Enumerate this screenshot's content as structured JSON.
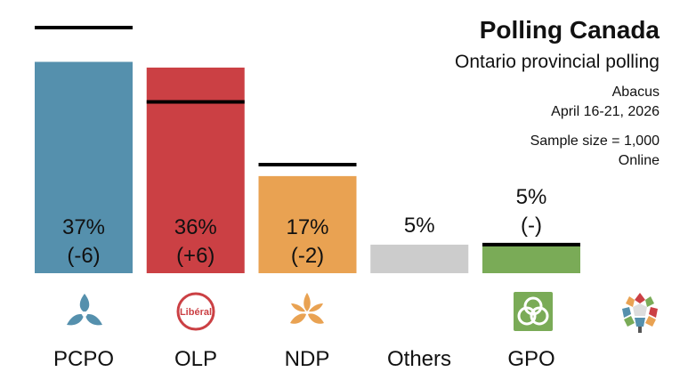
{
  "header": {
    "title": "Polling Canada",
    "subtitle": "Ontario provincial polling",
    "pollster": "Abacus",
    "dates": "April 16-21, 2026",
    "sample": "Sample size = 1,000",
    "method": "Online"
  },
  "chart_data": {
    "type": "bar",
    "categories": [
      "PCPO",
      "OLP",
      "NDP",
      "Others",
      "GPO"
    ],
    "series": [
      {
        "values": [
          37,
          36,
          17,
          5,
          5
        ]
      }
    ],
    "previous": [
      43,
      30,
      19,
      null,
      5
    ],
    "data_labels": [
      "37%",
      "36%",
      "17%",
      "5%",
      "5%"
    ],
    "change_labels": [
      "(-6)",
      "(+6)",
      "(-2)",
      "",
      "(-)"
    ],
    "colors": [
      "#5590ad",
      "#cb4044",
      "#e9a252",
      "#cccccc",
      "#7aab57"
    ],
    "ylim": [
      0,
      43
    ],
    "grid": false,
    "legend": "none"
  },
  "icons": [
    "pcpo-trillium-icon",
    "liberal-logo-icon",
    "ndp-trillium-icon",
    "",
    "gpo-logo-icon",
    "polling-canada-logo-icon"
  ],
  "liberal_logo_text": "Libéral"
}
